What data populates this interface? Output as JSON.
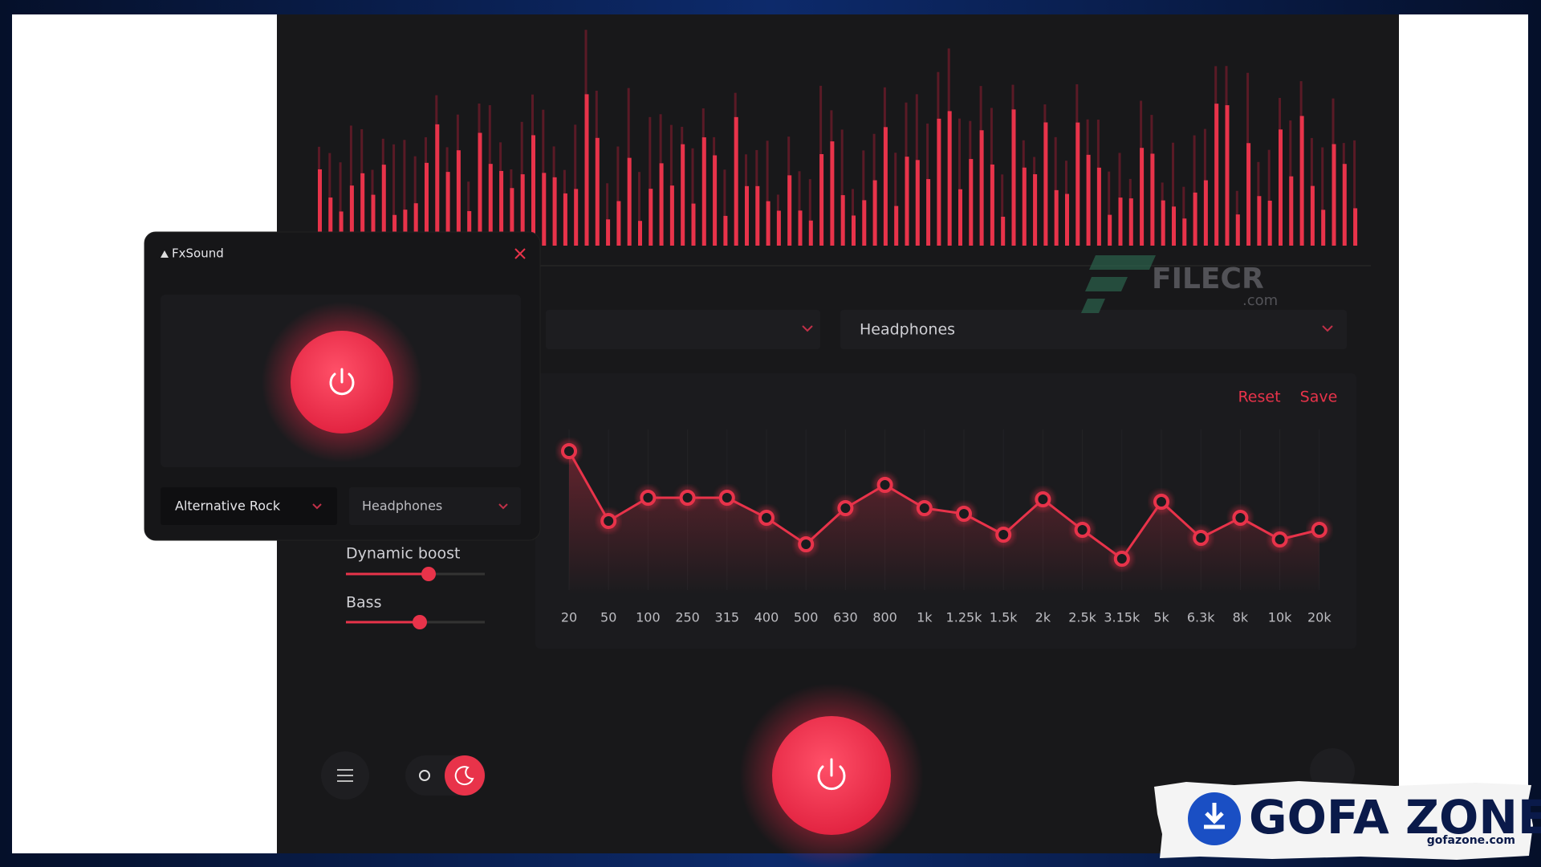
{
  "app": {
    "title": "FxSound",
    "preset": "Alternative Rock",
    "output": "Headphones",
    "dynamic_boost": "Dynamic boost",
    "bass": "Bass",
    "main_output": "Headphones",
    "reset": "Reset",
    "save": "Save",
    "eq_bands": [
      "20",
      "50",
      "100",
      "250",
      "315",
      "400",
      "500",
      "630",
      "800",
      "1k",
      "1.25k",
      "1.5k",
      "2k",
      "2.5k",
      "3.15k",
      "5k",
      "6.3k",
      "8k",
      "10k",
      "20k"
    ]
  },
  "watermarks": {
    "filecr": "FILECR",
    "filecr_domain": ".com",
    "gofa": "GOFA ZONE",
    "gofa_domain": "gofazone.com"
  }
}
